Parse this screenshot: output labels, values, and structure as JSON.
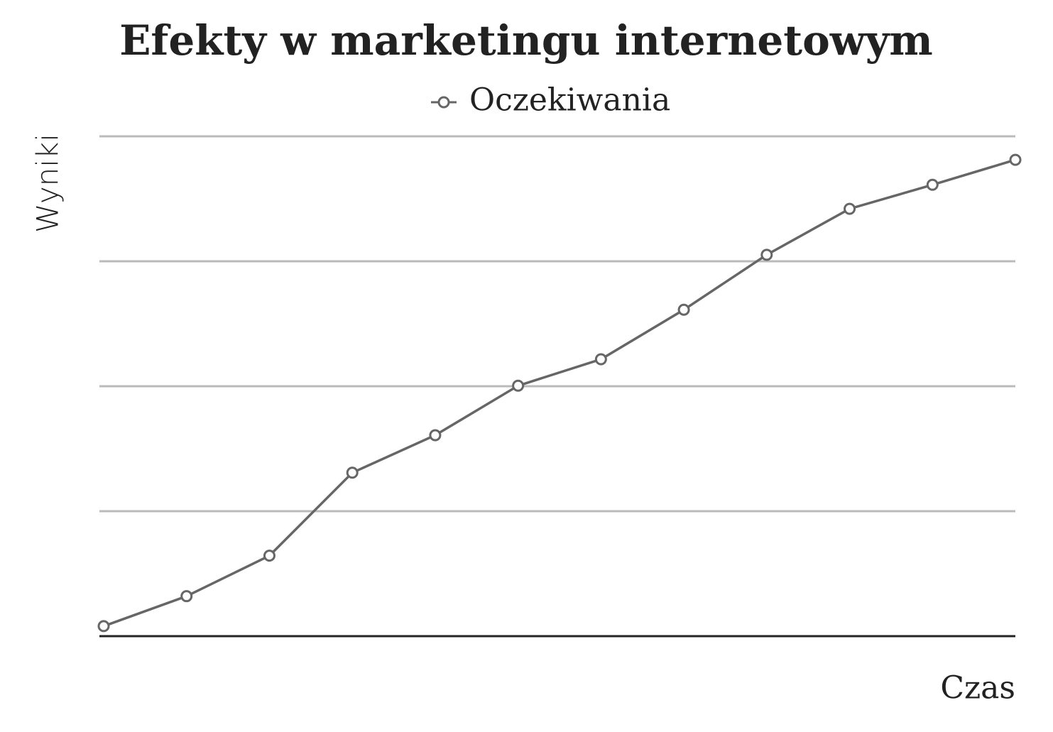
{
  "chart_data": {
    "type": "line",
    "title": "Efekty w marketingu internetowym",
    "x_label": "Czas",
    "y_label": "Wyniki",
    "categories": [
      null,
      null,
      null,
      null,
      null,
      null,
      null,
      null,
      null,
      null,
      null,
      null
    ],
    "series": [
      {
        "name": "Oczekiwania",
        "color": "#666666",
        "values": [
          2.0,
          8.0,
          16.1,
          32.7,
          40.2,
          50.1,
          55.4,
          65.3,
          76.3,
          85.5,
          90.3,
          95.3
        ]
      }
    ],
    "ylim": [
      0,
      100
    ],
    "yticks": [
      0,
      25,
      50,
      75,
      100
    ],
    "grid": true,
    "legend": "top"
  }
}
